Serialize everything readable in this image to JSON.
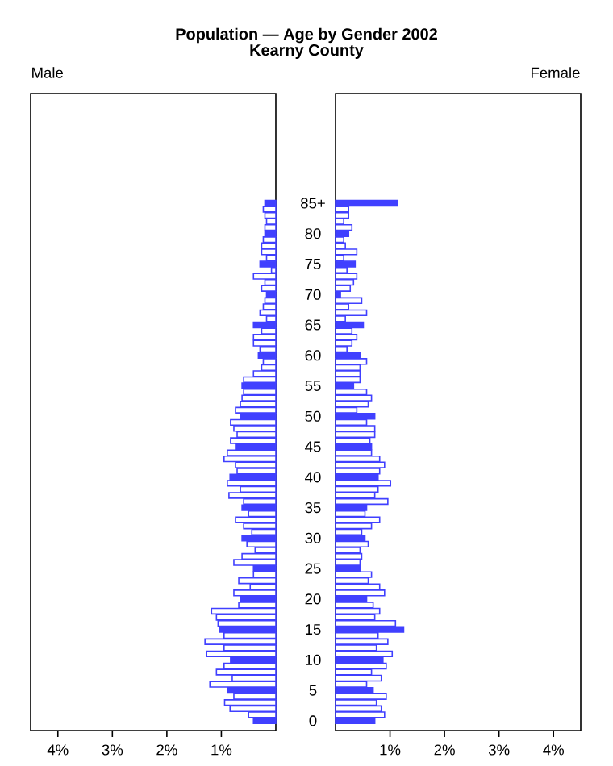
{
  "chart_data": [
    {
      "type": "bar",
      "orientation": "horizontal",
      "title": "Population — Age by Gender 2002",
      "subtitle": "Kearny County",
      "annotations": [
        "Male"
      ],
      "categories": [
        "85+",
        null,
        null,
        null,
        null,
        "80",
        null,
        null,
        null,
        null,
        "75",
        null,
        null,
        null,
        null,
        "70",
        null,
        null,
        null,
        null,
        "65",
        null,
        null,
        null,
        null,
        "60",
        null,
        null,
        null,
        null,
        "55",
        null,
        null,
        null,
        null,
        "50",
        null,
        null,
        null,
        null,
        "45",
        null,
        null,
        null,
        null,
        "40",
        null,
        null,
        null,
        null,
        "35",
        null,
        null,
        null,
        null,
        "30",
        null,
        null,
        null,
        null,
        "25",
        null,
        null,
        null,
        null,
        "20",
        null,
        null,
        null,
        null,
        "15",
        null,
        null,
        null,
        null,
        "10",
        null,
        null,
        null,
        null,
        "5",
        null,
        null,
        null,
        null,
        "0"
      ],
      "xlim": [
        4.5,
        0
      ],
      "xticks": [
        {
          "value": 1,
          "label": "1%"
        },
        {
          "value": 2,
          "label": "2%"
        },
        {
          "value": 3,
          "label": "3%"
        },
        {
          "value": 4,
          "label": "4%"
        }
      ],
      "series": [
        {
          "color": "#4040ff",
          "colors": [
            "#4040ff",
            "#ffffff",
            "#ffffff",
            "#ffffff",
            "#ffffff",
            "#4040ff",
            "#ffffff",
            "#ffffff",
            "#ffffff",
            "#ffffff",
            "#4040ff",
            "#ffffff",
            "#ffffff",
            "#ffffff",
            "#ffffff",
            "#4040ff",
            "#ffffff",
            "#ffffff",
            "#ffffff",
            "#ffffff",
            "#4040ff",
            "#ffffff",
            "#ffffff",
            "#ffffff",
            "#ffffff",
            "#4040ff",
            "#ffffff",
            "#ffffff",
            "#ffffff",
            "#ffffff",
            "#4040ff",
            "#ffffff",
            "#ffffff",
            "#ffffff",
            "#ffffff",
            "#4040ff",
            "#ffffff",
            "#ffffff",
            "#ffffff",
            "#ffffff",
            "#4040ff",
            "#ffffff",
            "#ffffff",
            "#ffffff",
            "#ffffff",
            "#4040ff",
            "#ffffff",
            "#ffffff",
            "#ffffff",
            "#ffffff",
            "#4040ff",
            "#ffffff",
            "#ffffff",
            "#ffffff",
            "#ffffff",
            "#4040ff",
            "#ffffff",
            "#ffffff",
            "#ffffff",
            "#ffffff",
            "#4040ff",
            "#ffffff",
            "#ffffff",
            "#ffffff",
            "#ffffff",
            "#4040ff",
            "#ffffff",
            "#ffffff",
            "#ffffff",
            "#ffffff",
            "#4040ff",
            "#ffffff",
            "#ffffff",
            "#ffffff",
            "#ffffff",
            "#4040ff",
            "#ffffff",
            "#ffffff",
            "#ffffff",
            "#ffffff",
            "#4040ff",
            "#ffffff",
            "#ffffff",
            "#ffffff",
            "#ffffff",
            "#4040ff"
          ],
          "values": [
            0.2,
            0.23,
            0.2,
            0.17,
            0.2,
            0.2,
            0.23,
            0.26,
            0.26,
            0.17,
            0.29,
            0.08,
            0.41,
            0.2,
            0.26,
            0.17,
            0.2,
            0.23,
            0.29,
            0.17,
            0.41,
            0.26,
            0.41,
            0.41,
            0.29,
            0.32,
            0.23,
            0.26,
            0.41,
            0.59,
            0.62,
            0.59,
            0.62,
            0.65,
            0.74,
            0.65,
            0.83,
            0.77,
            0.71,
            0.83,
            0.74,
            0.89,
            0.95,
            0.74,
            0.71,
            0.84,
            0.89,
            0.65,
            0.86,
            0.59,
            0.62,
            0.5,
            0.74,
            0.59,
            0.44,
            0.62,
            0.53,
            0.38,
            0.62,
            0.77,
            0.41,
            0.41,
            0.68,
            0.47,
            0.77,
            0.65,
            0.68,
            1.18,
            1.09,
            1.06,
            1.03,
            0.95,
            1.3,
            0.95,
            1.27,
            0.83,
            0.95,
            1.09,
            0.8,
            1.21,
            0.89,
            0.77,
            0.94,
            0.84,
            0.5,
            0.41
          ]
        }
      ]
    },
    {
      "type": "bar",
      "orientation": "horizontal",
      "annotations": [
        "Female"
      ],
      "tick_labels": "x",
      "categories": [
        null,
        null,
        null,
        null,
        null,
        null,
        null,
        null,
        null,
        null,
        null,
        null,
        null,
        null,
        null,
        null,
        null,
        null,
        null,
        null,
        null,
        null,
        null,
        null,
        null,
        null,
        null,
        null,
        null,
        null,
        null,
        null,
        null,
        null,
        null,
        null,
        null,
        null,
        null,
        null,
        null,
        null,
        null,
        null,
        null,
        null,
        null,
        null,
        null,
        null,
        null,
        null,
        null,
        null,
        null,
        null,
        null,
        null,
        null,
        null,
        null,
        null,
        null,
        null,
        null,
        null,
        null,
        null,
        null,
        null,
        null,
        null,
        null,
        null,
        null,
        null,
        null,
        null,
        null,
        null,
        null,
        null,
        null,
        null,
        null,
        null
      ],
      "xlim": [
        0,
        4.5
      ],
      "xticks": [
        {
          "value": 1,
          "label": "1%"
        },
        {
          "value": 2,
          "label": "2%"
        },
        {
          "value": 3,
          "label": "3%"
        },
        {
          "value": 4,
          "label": "4%"
        }
      ],
      "series": [
        {
          "color": "#4040ff",
          "colors": [
            "#4040ff",
            "#ffffff",
            "#ffffff",
            "#ffffff",
            "#ffffff",
            "#4040ff",
            "#ffffff",
            "#ffffff",
            "#ffffff",
            "#ffffff",
            "#4040ff",
            "#ffffff",
            "#ffffff",
            "#ffffff",
            "#ffffff",
            "#4040ff",
            "#ffffff",
            "#ffffff",
            "#ffffff",
            "#ffffff",
            "#4040ff",
            "#ffffff",
            "#ffffff",
            "#ffffff",
            "#ffffff",
            "#4040ff",
            "#ffffff",
            "#ffffff",
            "#ffffff",
            "#ffffff",
            "#4040ff",
            "#ffffff",
            "#ffffff",
            "#ffffff",
            "#ffffff",
            "#4040ff",
            "#ffffff",
            "#ffffff",
            "#ffffff",
            "#ffffff",
            "#4040ff",
            "#ffffff",
            "#ffffff",
            "#ffffff",
            "#ffffff",
            "#4040ff",
            "#ffffff",
            "#ffffff",
            "#ffffff",
            "#ffffff",
            "#4040ff",
            "#ffffff",
            "#ffffff",
            "#ffffff",
            "#ffffff",
            "#4040ff",
            "#ffffff",
            "#ffffff",
            "#ffffff",
            "#ffffff",
            "#4040ff",
            "#ffffff",
            "#ffffff",
            "#ffffff",
            "#ffffff",
            "#4040ff",
            "#ffffff",
            "#ffffff",
            "#ffffff",
            "#ffffff",
            "#4040ff",
            "#ffffff",
            "#ffffff",
            "#ffffff",
            "#ffffff",
            "#4040ff",
            "#ffffff",
            "#ffffff",
            "#ffffff",
            "#ffffff",
            "#4040ff",
            "#ffffff",
            "#ffffff",
            "#ffffff",
            "#ffffff",
            "#4040ff"
          ],
          "values": [
            1.14,
            0.24,
            0.24,
            0.15,
            0.3,
            0.24,
            0.15,
            0.18,
            0.39,
            0.15,
            0.36,
            0.21,
            0.39,
            0.33,
            0.27,
            0.09,
            0.48,
            0.24,
            0.57,
            0.18,
            0.51,
            0.3,
            0.39,
            0.3,
            0.21,
            0.45,
            0.57,
            0.45,
            0.45,
            0.45,
            0.33,
            0.57,
            0.66,
            0.6,
            0.39,
            0.72,
            0.57,
            0.72,
            0.72,
            0.63,
            0.66,
            0.66,
            0.81,
            0.9,
            0.81,
            0.78,
            1.01,
            0.78,
            0.72,
            0.96,
            0.57,
            0.54,
            0.81,
            0.66,
            0.48,
            0.54,
            0.6,
            0.45,
            0.48,
            0.45,
            0.45,
            0.66,
            0.6,
            0.81,
            0.9,
            0.57,
            0.69,
            0.81,
            0.72,
            1.1,
            1.25,
            0.78,
            0.96,
            0.75,
            1.04,
            0.87,
            0.93,
            0.66,
            0.84,
            0.57,
            0.69,
            0.93,
            0.75,
            0.84,
            0.9,
            0.72
          ]
        }
      ]
    }
  ]
}
